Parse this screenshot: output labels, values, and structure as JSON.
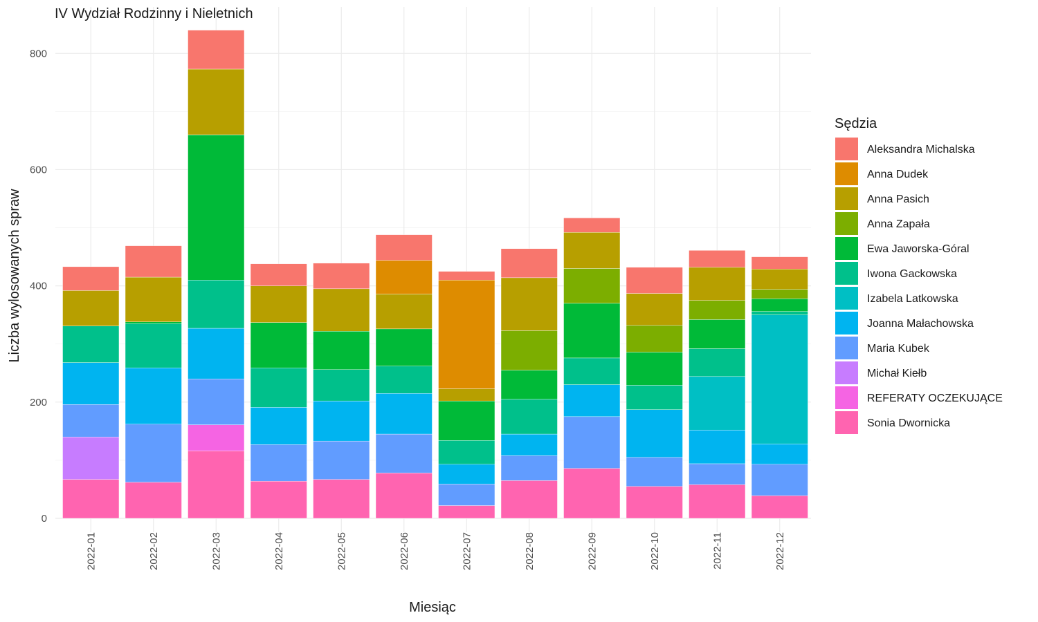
{
  "chart_data": {
    "type": "bar",
    "stacked": true,
    "title": "IV Wydział Rodzinny i Nieletnich",
    "xlabel": "Miesiąc",
    "ylabel": "Liczba wylosowanych spraw",
    "ylim": [
      0,
      840
    ],
    "yticks": [
      0,
      200,
      400,
      600,
      800
    ],
    "grid": true,
    "legend_title": "Sędzia",
    "legend_position": "right",
    "categories": [
      "2022-01",
      "2022-02",
      "2022-03",
      "2022-04",
      "2022-05",
      "2022-06",
      "2022-07",
      "2022-08",
      "2022-09",
      "2022-10",
      "2022-11",
      "2022-12"
    ],
    "series": [
      {
        "name": "Aleksandra Michalska",
        "color": "#F8766D",
        "values": [
          41,
          54,
          67,
          38,
          44,
          44,
          15,
          50,
          25,
          45,
          29,
          21
        ]
      },
      {
        "name": "Anna Dudek",
        "color": "#DE8C00",
        "values": [
          0,
          0,
          0,
          0,
          0,
          58,
          187,
          0,
          0,
          0,
          0,
          0
        ]
      },
      {
        "name": "Anna Pasich",
        "color": "#B79F00",
        "values": [
          61,
          77,
          113,
          63,
          73,
          60,
          21,
          91,
          62,
          55,
          57,
          35
        ]
      },
      {
        "name": "Anna Zapała",
        "color": "#7CAE00",
        "values": [
          0,
          0,
          0,
          0,
          0,
          0,
          0,
          68,
          60,
          46,
          33,
          16
        ]
      },
      {
        "name": "Ewa Jaworska-Góral",
        "color": "#00BA38",
        "values": [
          0,
          3,
          250,
          78,
          66,
          64,
          68,
          50,
          94,
          57,
          50,
          22
        ]
      },
      {
        "name": "Iwona Gackowska",
        "color": "#00C08B",
        "values": [
          63,
          76,
          83,
          68,
          54,
          47,
          41,
          60,
          46,
          42,
          48,
          6
        ]
      },
      {
        "name": "Izabela Latkowska",
        "color": "#00BFC4",
        "values": [
          0,
          0,
          0,
          0,
          0,
          0,
          0,
          0,
          0,
          0,
          92,
          222
        ]
      },
      {
        "name": "Joanna Małachowska",
        "color": "#00B4F0",
        "values": [
          72,
          97,
          87,
          64,
          69,
          70,
          34,
          37,
          55,
          82,
          58,
          35
        ]
      },
      {
        "name": "Maria Kubek",
        "color": "#619CFF",
        "values": [
          56,
          100,
          79,
          63,
          66,
          67,
          37,
          43,
          89,
          50,
          36,
          54
        ]
      },
      {
        "name": "Michał Kiełb",
        "color": "#C77CFF",
        "values": [
          73,
          0,
          0,
          0,
          0,
          0,
          0,
          0,
          0,
          0,
          0,
          0
        ]
      },
      {
        "name": "REFERATY OCZEKUJĄCE",
        "color": "#F564E3",
        "values": [
          0,
          0,
          45,
          0,
          0,
          0,
          0,
          0,
          0,
          0,
          0,
          0
        ]
      },
      {
        "name": "Sonia Dwornicka",
        "color": "#FF64B0",
        "values": [
          67,
          62,
          116,
          64,
          67,
          78,
          22,
          65,
          86,
          55,
          58,
          39
        ]
      }
    ]
  }
}
